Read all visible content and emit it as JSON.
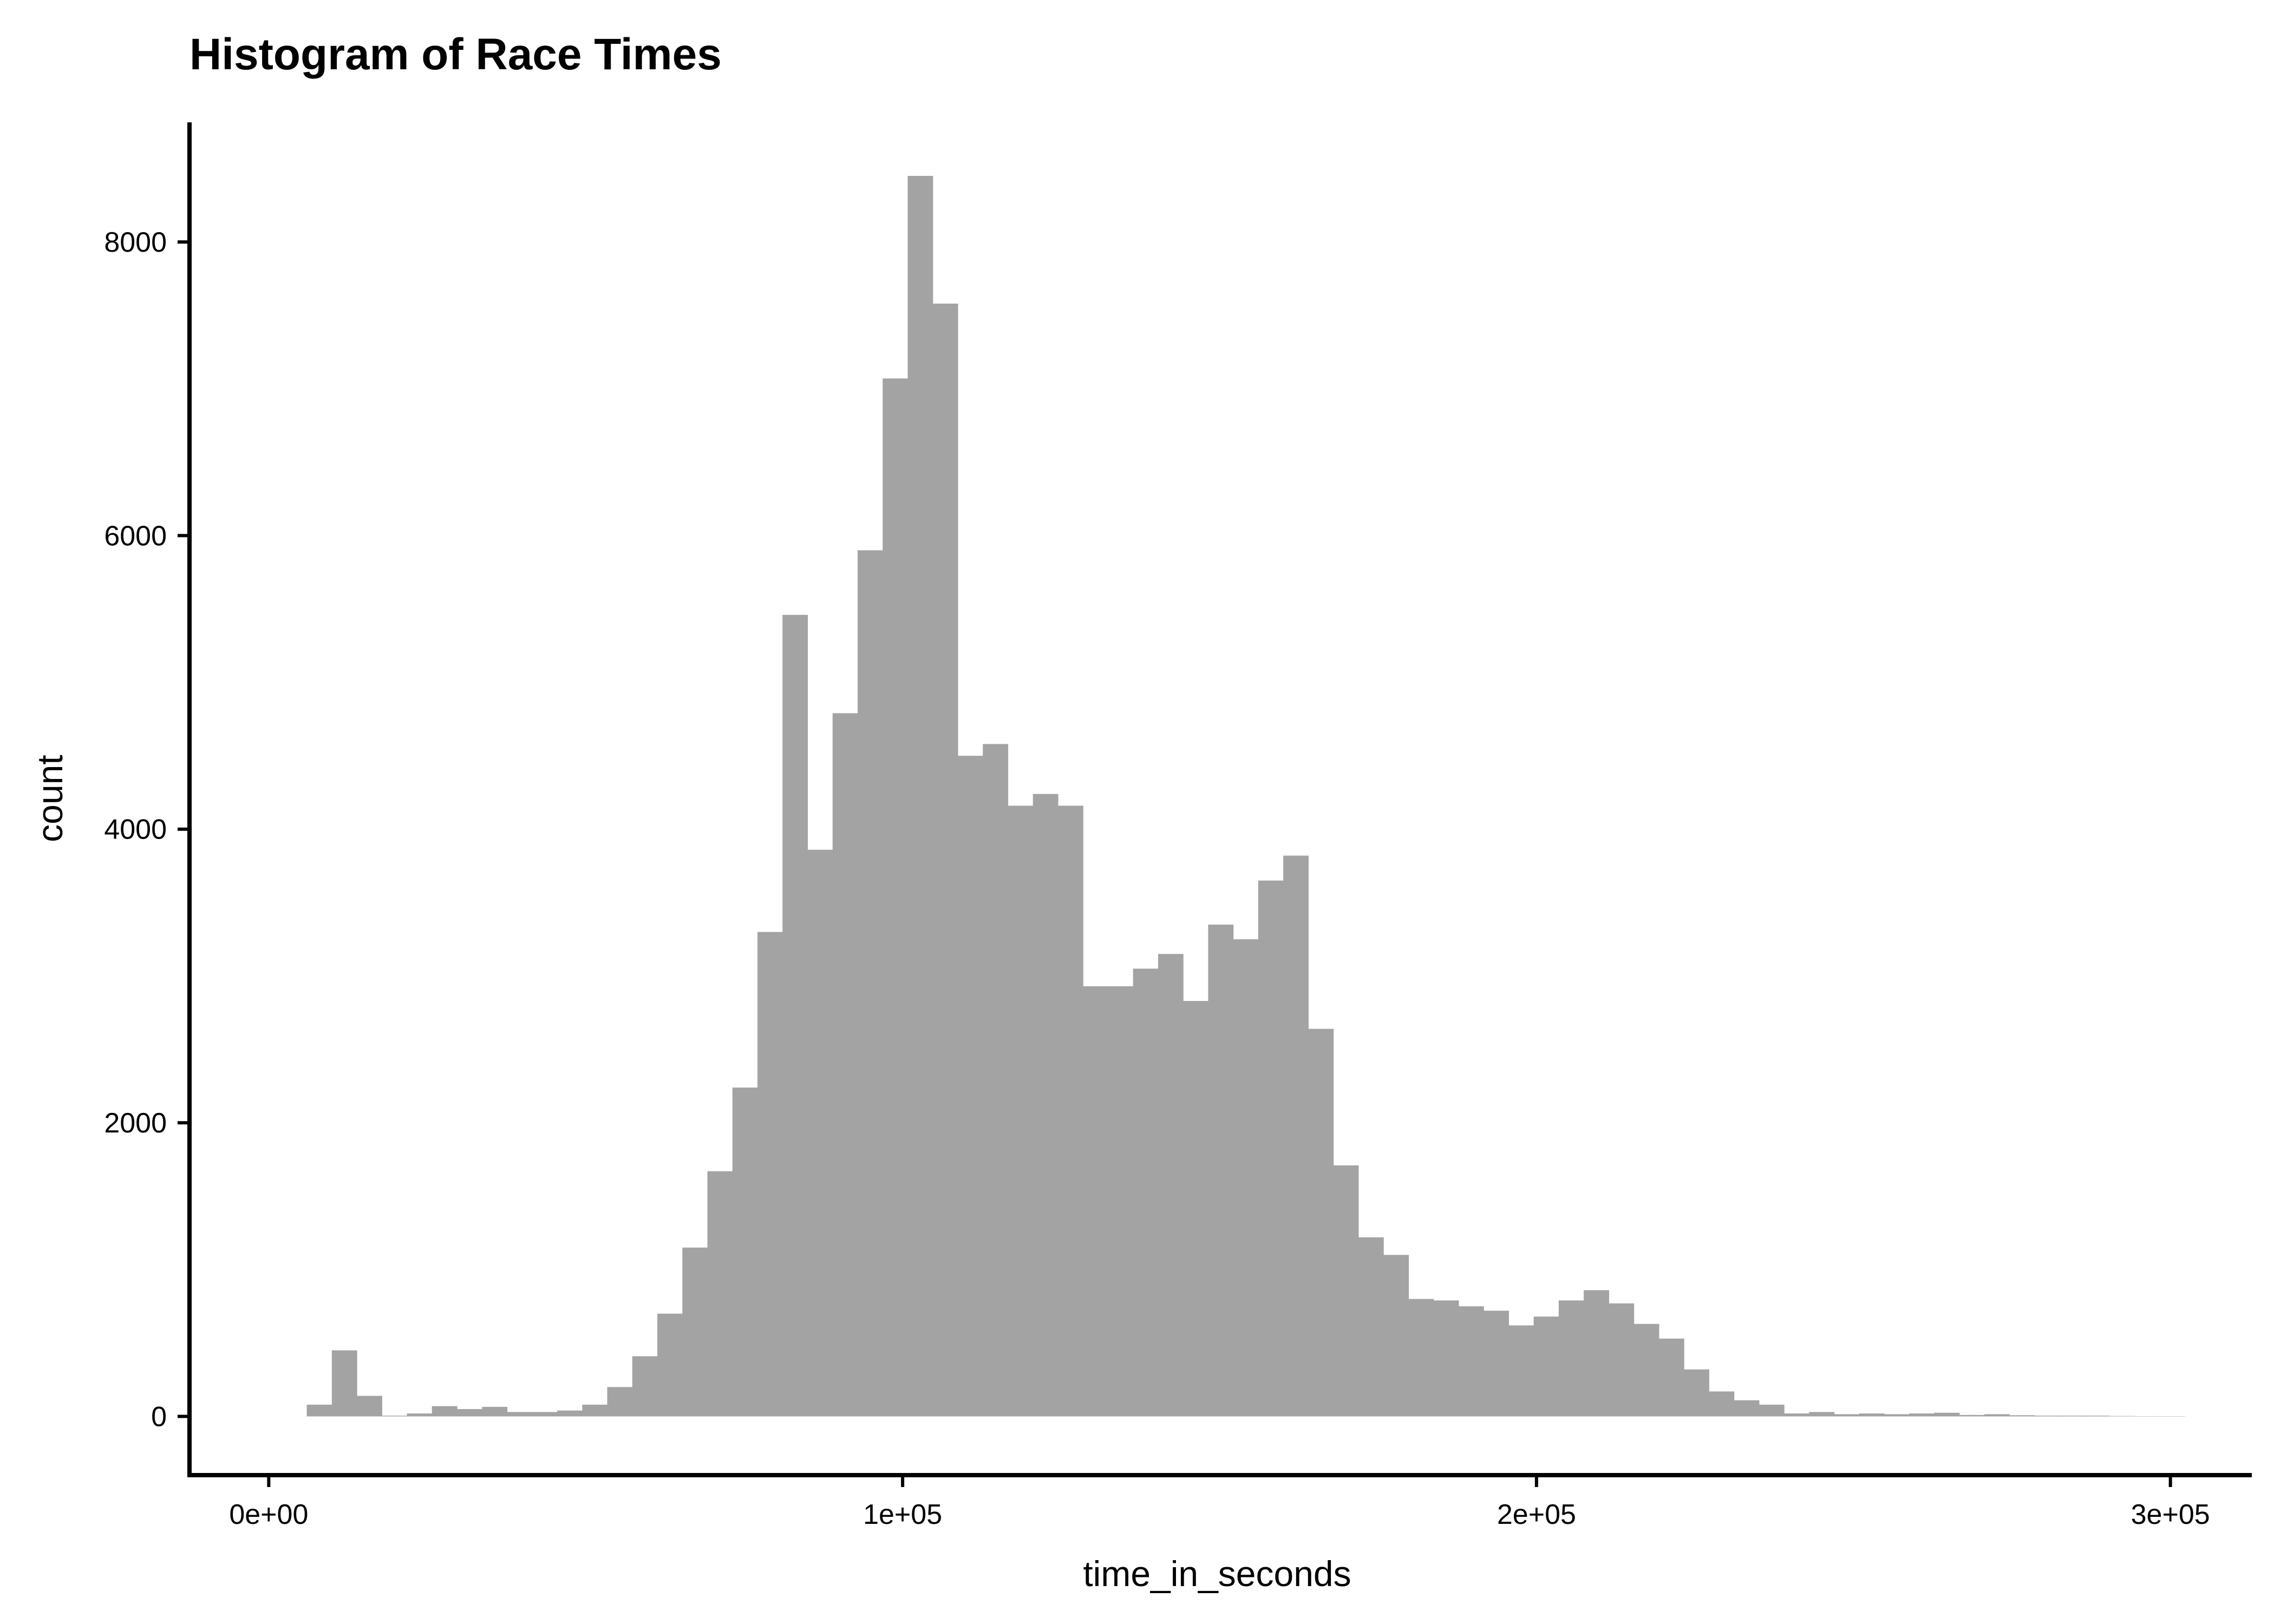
{
  "chart_data": {
    "type": "bar",
    "title": "Histogram of Race Times",
    "xlabel": "time_in_seconds",
    "ylabel": "count",
    "xlim": [
      -12500,
      312500
    ],
    "ylim": [
      -400,
      8800
    ],
    "x_ticks": [
      {
        "value": 0,
        "label": "0e+00"
      },
      {
        "value": 100000,
        "label": "1e+05"
      },
      {
        "value": 200000,
        "label": "2e+05"
      },
      {
        "value": 300000,
        "label": "3e+05"
      }
    ],
    "y_ticks": [
      {
        "value": 0,
        "label": "0"
      },
      {
        "value": 2000,
        "label": "2000"
      },
      {
        "value": 4000,
        "label": "4000"
      },
      {
        "value": 6000,
        "label": "6000"
      },
      {
        "value": 8000,
        "label": "8000"
      }
    ],
    "bin_width": 3950,
    "bins_start": 6000,
    "grid": false,
    "legend": "none",
    "bar_color": "#a3a3a3",
    "axis_color": "#000000",
    "counts": [
      80,
      450,
      140,
      5,
      20,
      70,
      50,
      65,
      30,
      30,
      40,
      80,
      200,
      410,
      700,
      1150,
      1670,
      2240,
      3300,
      5460,
      3860,
      4790,
      5900,
      7070,
      8450,
      7580,
      4500,
      4580,
      4160,
      4240,
      4160,
      2930,
      2930,
      3050,
      3150,
      2830,
      3350,
      3250,
      3650,
      3820,
      2640,
      1710,
      1220,
      1100,
      800,
      790,
      750,
      720,
      620,
      680,
      790,
      860,
      770,
      630,
      530,
      320,
      170,
      110,
      80,
      20,
      30,
      15,
      20,
      15,
      20,
      25,
      10,
      15,
      8,
      5,
      5,
      5,
      3,
      2,
      2
    ]
  }
}
